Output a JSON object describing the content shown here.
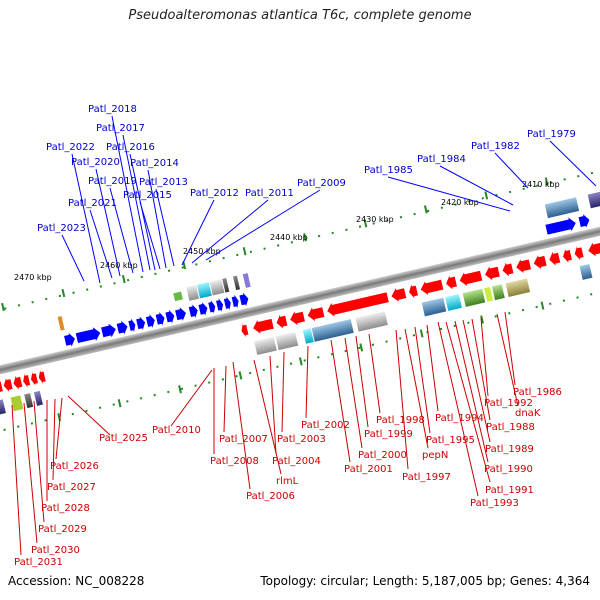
{
  "title": "Pseudoalteromonas atlantica T6c, complete genome",
  "accession": "Accession: NC_008228",
  "topology": "Topology: circular; Length: 5,187,005 bp; Genes: 4,364",
  "scale_labels": [
    "2470 kbp",
    "2460 kbp",
    "2450 kbp",
    "2440 kbp",
    "2430 kbp",
    "2420 kbp",
    "2410 kbp"
  ],
  "forward_genes": [
    "Patl_2018",
    "Patl_2017",
    "Patl_2022",
    "Patl_2016",
    "Patl_2020",
    "Patl_2014",
    "Patl_2019",
    "Patl_2013",
    "Patl_2015",
    "Patl_2021",
    "Patl_2012",
    "Patl_2011",
    "Patl_2009",
    "Patl_2023",
    "Patl_1979",
    "Patl_1982",
    "Patl_1984",
    "Patl_1985"
  ],
  "reverse_genes": [
    "Patl_1986",
    "dnaK",
    "Patl_1992",
    "Patl_1988",
    "Patl_1989",
    "Patl_1990",
    "Patl_1991",
    "Patl_1993",
    "Patl_1994",
    "Patl_1995",
    "pepN",
    "Patl_1997",
    "Patl_1998",
    "Patl_1999",
    "Patl_2000",
    "Patl_2001",
    "Patl_2002",
    "Patl_2003",
    "Patl_2004",
    "rlmL",
    "Patl_2006",
    "Patl_2007",
    "Patl_2008",
    "Patl_2010",
    "Patl_2025",
    "Patl_2026",
    "Patl_2027",
    "Patl_2028",
    "Patl_2029",
    "Patl_2030",
    "Patl_2031"
  ],
  "colors": {
    "forward": "#0000ff",
    "reverse": "#ff0000",
    "backbone": "#888888",
    "tick": "#228822"
  }
}
